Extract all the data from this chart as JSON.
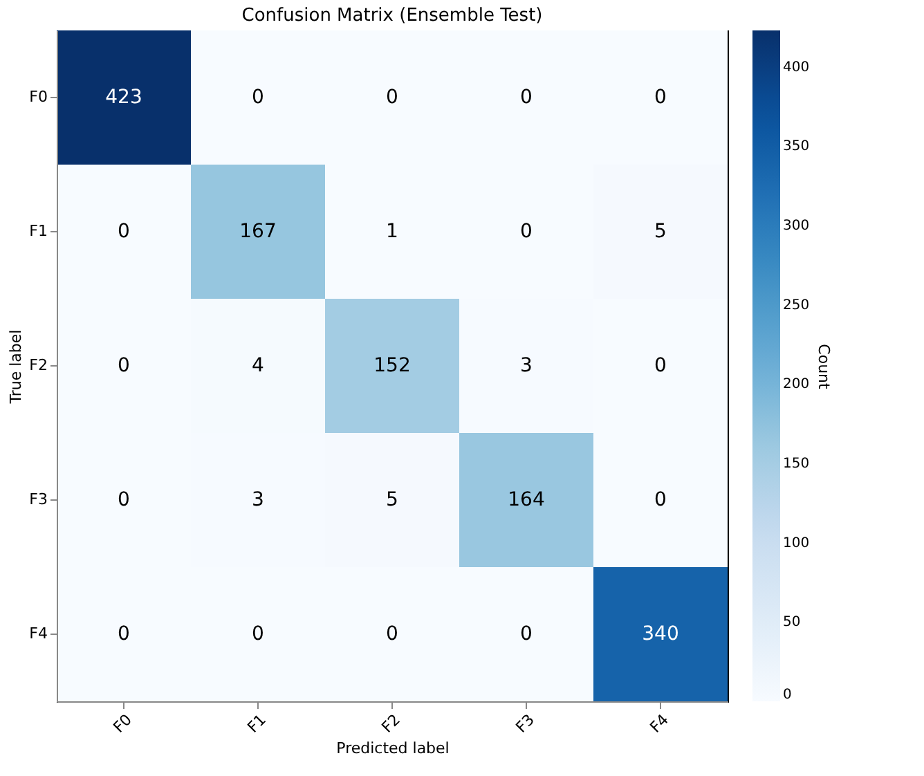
{
  "chart_data": {
    "type": "heatmap",
    "title": "Confusion Matrix (Ensemble Test)",
    "xlabel": "Predicted label",
    "ylabel": "True label",
    "clabel": "Count",
    "categories": [
      "F0",
      "F1",
      "F2",
      "F3",
      "F4"
    ],
    "y_categories": [
      "F0",
      "F1",
      "F2",
      "F3",
      "F4"
    ],
    "cells": [
      [
        423,
        0,
        0,
        0,
        0
      ],
      [
        0,
        167,
        1,
        0,
        5
      ],
      [
        0,
        4,
        152,
        3,
        0
      ],
      [
        0,
        3,
        5,
        164,
        0
      ],
      [
        0,
        0,
        0,
        0,
        340
      ]
    ],
    "clim": [
      0,
      423
    ],
    "cticks": [
      0,
      50,
      100,
      150,
      200,
      250,
      300,
      350,
      400
    ],
    "data_labels": true,
    "grid": false
  }
}
